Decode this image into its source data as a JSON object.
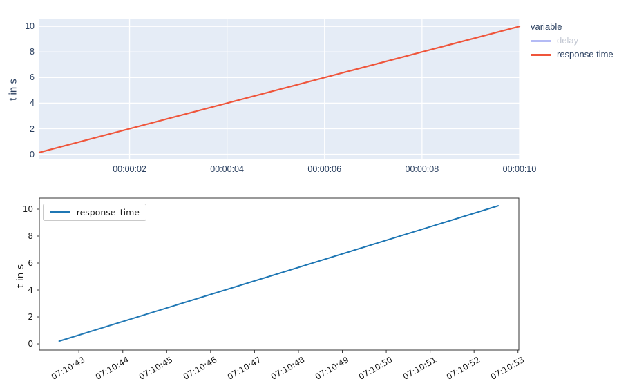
{
  "page": {
    "background": "#ffffff"
  },
  "chart_data": [
    {
      "name": "plotly-response-time-chart",
      "type": "line",
      "title": "",
      "xlabel": "",
      "ylabel": "t in s",
      "plot_bg": "#e5ecf6",
      "grid_color": "#ffffff",
      "tick_color": "#2a3f5f",
      "grid": true,
      "xlim": [
        0.15,
        10
      ],
      "ylim": [
        -0.4,
        10.55
      ],
      "xticks": {
        "values": [
          2,
          4,
          6,
          8,
          10
        ],
        "labels": [
          "00:00:02",
          "00:00:04",
          "00:00:06",
          "00:00:08",
          "00:00:10"
        ]
      },
      "yticks": {
        "values": [
          0,
          2,
          4,
          6,
          8,
          10
        ],
        "labels": [
          "0",
          "2",
          "4",
          "6",
          "8",
          "10"
        ]
      },
      "legend": {
        "position": "right",
        "title": "variable",
        "entries": [
          {
            "label": "delay",
            "color": "#b4bbf5",
            "hidden": true
          },
          {
            "label": "response time",
            "color": "#ef553b",
            "hidden": false
          }
        ]
      },
      "series": [
        {
          "name": "response time",
          "color": "#ef553b",
          "width": 2.2,
          "x": [
            0.15,
            10
          ],
          "y": [
            0.15,
            10
          ]
        },
        {
          "name": "delay",
          "color": "#636efa",
          "hidden": true,
          "x": [],
          "y": []
        }
      ]
    },
    {
      "name": "matplotlib-response-time-chart",
      "type": "line",
      "title": "",
      "xlabel": "",
      "ylabel": "t in s",
      "plot_bg": "#ffffff",
      "frame_color": "#333333",
      "tick_color": "#1a1a1a",
      "grid": false,
      "xlim": [
        42.1,
        53.02
      ],
      "ylim": [
        -0.46,
        10.82
      ],
      "xticks": {
        "values": [
          43,
          44,
          45,
          46,
          47,
          48,
          49,
          50,
          51,
          52,
          53
        ],
        "labels": [
          "07:10:43",
          "07:10:44",
          "07:10:45",
          "07:10:46",
          "07:10:47",
          "07:10:48",
          "07:10:49",
          "07:10:50",
          "07:10:51",
          "07:10:52",
          "07:10:53"
        ],
        "rotation": -30
      },
      "yticks": {
        "values": [
          0,
          2,
          4,
          6,
          8,
          10
        ],
        "labels": [
          "0",
          "2",
          "4",
          "6",
          "8",
          "10"
        ]
      },
      "legend": {
        "position": "upper-left",
        "entries": [
          {
            "label": "response_time",
            "color": "#1f77b4",
            "hidden": false
          }
        ]
      },
      "series": [
        {
          "name": "response_time",
          "color": "#1f77b4",
          "width": 2,
          "x": [
            42.55,
            52.55
          ],
          "y": [
            0.2,
            10.25
          ]
        }
      ]
    }
  ]
}
